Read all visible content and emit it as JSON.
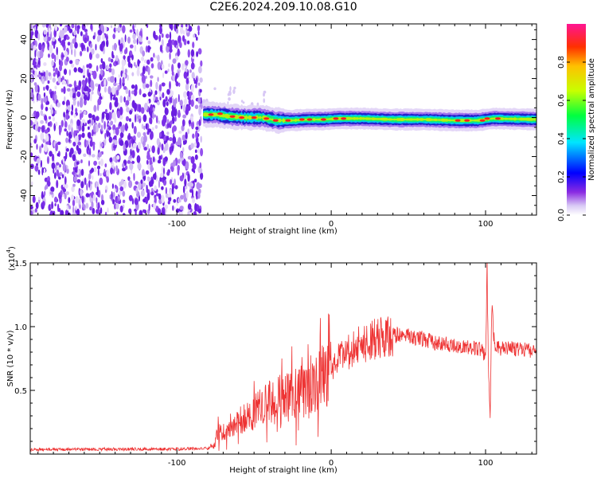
{
  "figure": {
    "title": "C2E6.2024.209.10.08.G10"
  },
  "chart_data": [
    {
      "type": "heatmap",
      "title": "C2E6.2024.209.10.08.G10",
      "xlabel": "Height of straight line (km)",
      "ylabel": "Frequency (Hz)",
      "xlim": [
        -195,
        133
      ],
      "ylim": [
        -50,
        48
      ],
      "x_ticks": [
        -100,
        0,
        100
      ],
      "x_tick_labels": [
        "-100",
        "0",
        "100"
      ],
      "y_ticks": [
        -40,
        -20,
        0,
        20,
        40
      ],
      "y_tick_labels": [
        "-40",
        "-20",
        "0",
        "20",
        "40"
      ],
      "noise_region_x": [
        -195,
        -83
      ],
      "signal": {
        "centerline": [
          {
            "x": -83,
            "y": 1.5
          },
          {
            "x": -75,
            "y": 1.5
          },
          {
            "x": -65,
            "y": 0.5
          },
          {
            "x": -55,
            "y": 0.0
          },
          {
            "x": -45,
            "y": 0.0
          },
          {
            "x": -35,
            "y": -1.5
          },
          {
            "x": -25,
            "y": -1.5
          },
          {
            "x": -15,
            "y": -1.0
          },
          {
            "x": -5,
            "y": -1.0
          },
          {
            "x": 5,
            "y": -0.5
          },
          {
            "x": 20,
            "y": -0.5
          },
          {
            "x": 40,
            "y": -1.0
          },
          {
            "x": 60,
            "y": -1.0
          },
          {
            "x": 80,
            "y": -1.5
          },
          {
            "x": 95,
            "y": -1.5
          },
          {
            "x": 105,
            "y": -0.5
          },
          {
            "x": 133,
            "y": -1.0
          }
        ]
      },
      "colorbar": {
        "label": "Normalized spectral amplitude",
        "range": [
          0,
          1
        ],
        "ticks": [
          0.0,
          0.2,
          0.4,
          0.6,
          0.8
        ],
        "tick_labels": [
          "0.0",
          "0.2",
          "0.4",
          "0.6",
          "0.8"
        ]
      },
      "colors": {
        "colormap": [
          "#ffffff",
          "#c9b3f2",
          "#7a3df0",
          "#1818c8",
          "#00c8f0",
          "#00ff80",
          "#c8ff00",
          "#ffa000",
          "#ff2020",
          "#ff1493"
        ]
      }
    },
    {
      "type": "line",
      "xlabel": "Height of straight line (km)",
      "ylabel": "SNR (10 * v/v)",
      "y_multiplier": "(x10",
      "y_multiplier_exp": "4",
      "xlim": [
        -195,
        133
      ],
      "ylim": [
        0,
        15000
      ],
      "x_ticks": [
        -100,
        0,
        100
      ],
      "x_tick_labels": [
        "-100",
        "0",
        "100"
      ],
      "y_ticks": [
        5000,
        10000,
        15000
      ],
      "y_tick_labels": [
        "0.5",
        "1.0",
        "1.5"
      ],
      "series": [
        {
          "color": "#ee3333",
          "x": [
            -195,
            -150,
            -100,
            -90,
            -80,
            -76,
            -72,
            -70,
            -66,
            -60,
            -55,
            -50,
            -45,
            -40,
            -35,
            -30,
            -25,
            -20,
            -15,
            -10,
            -5,
            -2,
            0,
            5,
            10,
            15,
            20,
            25,
            30,
            35,
            40,
            45,
            50,
            55,
            60,
            65,
            70,
            75,
            80,
            85,
            90,
            95,
            98,
            100,
            101,
            102,
            103,
            104,
            106,
            110,
            115,
            120,
            125,
            130,
            133
          ],
          "values": [
            350,
            380,
            400,
            420,
            450,
            700,
            2200,
            1800,
            2300,
            2700,
            3000,
            3200,
            3700,
            4000,
            4200,
            4400,
            4700,
            5000,
            5300,
            5600,
            6000,
            6600,
            7000,
            7500,
            7900,
            8300,
            8700,
            8900,
            9100,
            9200,
            9300,
            9350,
            9300,
            9150,
            9000,
            8800,
            8700,
            8600,
            8500,
            8400,
            8400,
            8300,
            8000,
            7600,
            14500,
            6000,
            3000,
            11500,
            8300,
            8300,
            8300,
            8250,
            8200,
            8100,
            8000
          ]
        }
      ]
    }
  ]
}
